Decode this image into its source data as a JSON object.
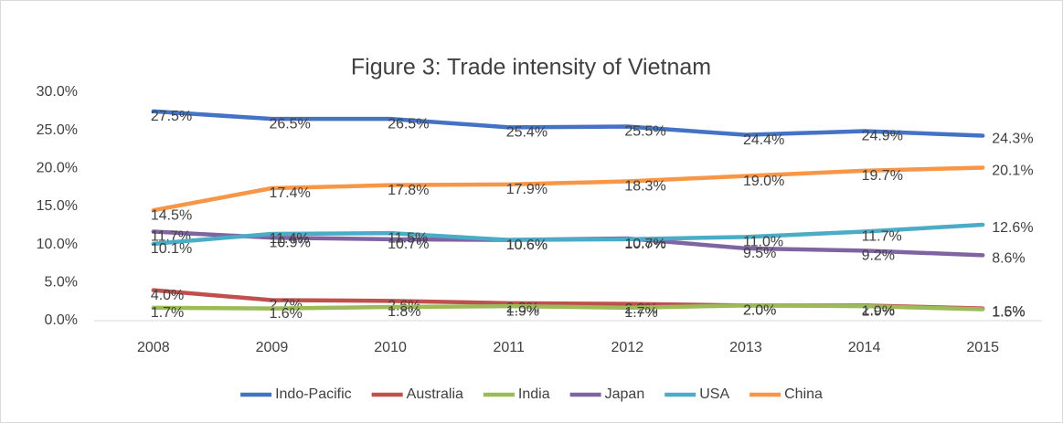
{
  "chart_data": {
    "type": "line",
    "title": "Figure 3: Trade intensity of Vietnam",
    "categories": [
      "2008",
      "2009",
      "2010",
      "2011",
      "2012",
      "2013",
      "2014",
      "2015"
    ],
    "series": [
      {
        "name": "Indo-Pacific",
        "color": "#4472c4",
        "values": [
          27.5,
          26.5,
          26.5,
          25.4,
          25.5,
          24.4,
          24.9,
          24.3
        ],
        "value_labels": [
          "27.5%",
          "26.5%",
          "26.5%",
          "25.4%",
          "25.5%",
          "24.4%",
          "24.9%",
          "24.3%"
        ]
      },
      {
        "name": "Australia",
        "color": "#c0504d",
        "values": [
          4.0,
          2.7,
          2.6,
          2.3,
          2.2,
          2.0,
          2.0,
          1.6
        ],
        "value_labels": [
          "4.0%",
          "2.7%",
          "2.6%",
          "2.3%",
          "2.2%",
          "2.0%",
          "2.0%",
          "1.6%"
        ]
      },
      {
        "name": "India",
        "color": "#9bbb59",
        "values": [
          1.7,
          1.6,
          1.8,
          1.9,
          1.7,
          2.0,
          1.9,
          1.5
        ],
        "value_labels": [
          "1.7%",
          "1.6%",
          "1.8%",
          "1.9%",
          "1.7%",
          "2.0%",
          "1.9%",
          "1.5%"
        ]
      },
      {
        "name": "Japan",
        "color": "#8064a2",
        "values": [
          11.7,
          10.9,
          10.7,
          10.6,
          10.8,
          9.5,
          9.2,
          8.6
        ],
        "value_labels": [
          "11.7%",
          "10.9%",
          "10.7%",
          "10.6%",
          "10.8%",
          "9.5%",
          "9.2%",
          "8.6%"
        ]
      },
      {
        "name": "USA",
        "color": "#4bacc6",
        "values": [
          10.1,
          11.4,
          11.5,
          10.6,
          10.7,
          11.0,
          11.7,
          12.6
        ],
        "value_labels": [
          "10.1%",
          "11.4%",
          "11.5%",
          "10.6%",
          "10.7%",
          "11.0%",
          "11.7%",
          "12.6%"
        ]
      },
      {
        "name": "China",
        "color": "#f79646",
        "values": [
          14.5,
          17.4,
          17.8,
          17.9,
          18.3,
          19.0,
          19.7,
          20.1
        ],
        "value_labels": [
          "14.5%",
          "17.4%",
          "17.8%",
          "17.9%",
          "18.3%",
          "19.0%",
          "19.7%",
          "20.1%"
        ]
      }
    ],
    "ylim": [
      0,
      30
    ],
    "yticks": [
      {
        "value": 0,
        "label": "0.0%"
      },
      {
        "value": 5,
        "label": "5.0%"
      },
      {
        "value": 10,
        "label": "10.0%"
      },
      {
        "value": 15,
        "label": "15.0%"
      },
      {
        "value": 20,
        "label": "20.0%"
      },
      {
        "value": 25,
        "label": "25.0%"
      },
      {
        "value": 30,
        "label": "30.0%"
      }
    ],
    "grid": false,
    "legend": "bottom"
  }
}
